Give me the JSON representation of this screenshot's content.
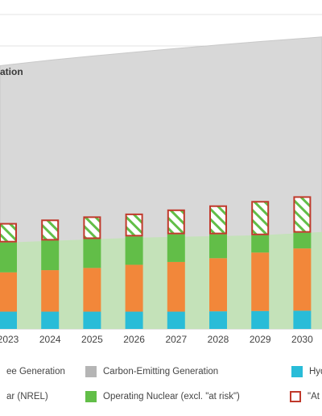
{
  "chart_data": {
    "type": "bar",
    "title_fragment": "ation",
    "categories": [
      "2023",
      "2024",
      "2025",
      "2026",
      "2027",
      "2028",
      "2029",
      "2030"
    ],
    "ylim": [
      0,
      100
    ],
    "series": [
      {
        "name": "Hydro",
        "color": "#29bcd8",
        "values": [
          5.5,
          5.5,
          5.5,
          5.5,
          5.5,
          5.6,
          5.7,
          5.8
        ]
      },
      {
        "name": "Solar (NREL)",
        "color": "#f2873a",
        "values": [
          12.5,
          13.2,
          13.9,
          14.9,
          15.8,
          16.9,
          18.6,
          19.8
        ]
      },
      {
        "name": "Operating Nuclear (excl. \"at risk\")",
        "color": "#62be48",
        "values": [
          9.5,
          9.4,
          9.2,
          9.0,
          8.8,
          7.6,
          5.5,
          5.0
        ]
      },
      {
        "name": "\"At risk\"",
        "color": "#c0392b",
        "pattern": "hatched",
        "values": [
          6.2,
          6.7,
          7.2,
          7.3,
          7.9,
          9.2,
          10.9,
          11.6
        ]
      }
    ],
    "area_series": [
      {
        "name": "Carbon-Free Generation",
        "color": "#c4e2b9",
        "values": [
          27.5,
          28.0,
          28.5,
          29.0,
          29.3,
          29.5,
          29.8,
          30.5
        ]
      },
      {
        "name": "Carbon-Emitting Generation",
        "color": "#d8d8d8",
        "values": [
          84.0,
          85.5,
          86.8,
          88.0,
          89.2,
          90.3,
          91.4,
          92.4
        ]
      }
    ],
    "legend": {
      "placement": "bottom",
      "items": [
        {
          "label": "ee Generation",
          "color": "#c4e2b9",
          "style": "solid"
        },
        {
          "label": "Carbon-Emitting Generation",
          "color": "#b5b5b5",
          "style": "solid"
        },
        {
          "label": "Hyd",
          "color": "#29bcd8",
          "style": "solid"
        },
        {
          "label": "ar (NREL)",
          "color": "#f2873a",
          "style": "solid"
        },
        {
          "label": "Operating Nuclear (excl. \"at risk\")",
          "color": "#62be48",
          "style": "solid"
        },
        {
          "label": "\"At",
          "color": "#c0392b",
          "style": "outline"
        }
      ]
    },
    "grid": true
  }
}
